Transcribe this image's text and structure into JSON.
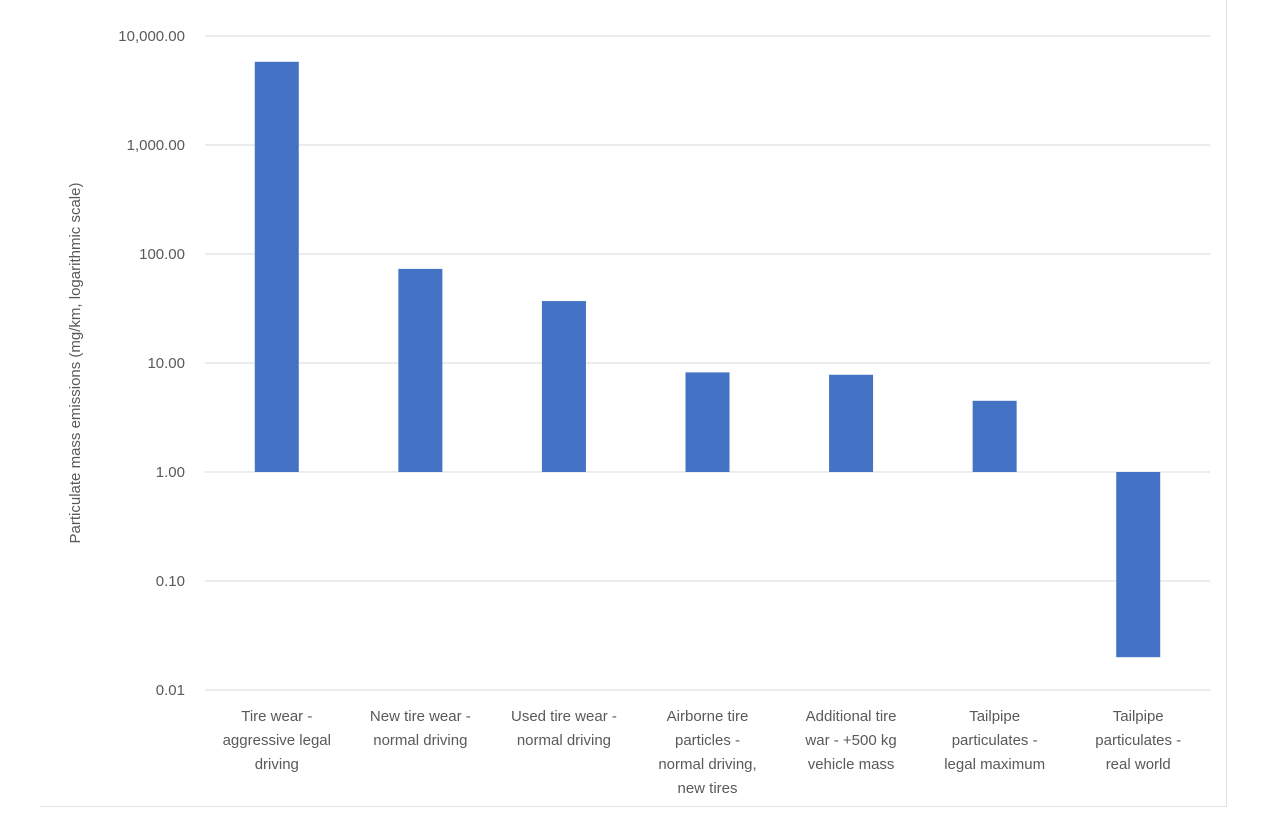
{
  "chart_data": {
    "type": "bar",
    "title": "",
    "xlabel": "",
    "ylabel": "Particulate mass emissions (mg/km, logarithmic scale)",
    "yscale": "log",
    "ylim": [
      0.01,
      10000
    ],
    "baseline": 1,
    "grid": true,
    "legend": "none",
    "bar_color": "#4472C4",
    "y_ticks": [
      {
        "value": 0.01,
        "label": "0.01"
      },
      {
        "value": 0.1,
        "label": "0.10"
      },
      {
        "value": 1,
        "label": "1.00"
      },
      {
        "value": 10,
        "label": "10.00"
      },
      {
        "value": 100,
        "label": "100.00"
      },
      {
        "value": 1000,
        "label": "1,000.00"
      },
      {
        "value": 10000,
        "label": "10,000.00"
      }
    ],
    "categories": [
      [
        "Tire wear -",
        "aggressive legal",
        "driving"
      ],
      [
        "New tire wear -",
        "normal driving"
      ],
      [
        "Used tire wear -",
        "normal driving"
      ],
      [
        "Airborne tire",
        "particles -",
        "normal driving,",
        "new tires"
      ],
      [
        "Additional tire",
        "war - +500 kg",
        "vehicle mass"
      ],
      [
        "Tailpipe",
        "particulates -",
        "legal maximum"
      ],
      [
        "Tailpipe",
        "particulates -",
        "real world"
      ]
    ],
    "values": [
      5800,
      73,
      37,
      8.2,
      7.8,
      4.5,
      0.02
    ]
  }
}
